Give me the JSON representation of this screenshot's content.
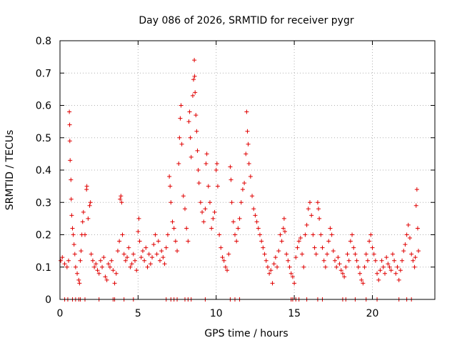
{
  "chart_data": {
    "type": "scatter",
    "title": "Day 086 of 2026, SRMTID for receiver pygr",
    "xlabel": "GPS time / hours",
    "ylabel": "SRMTID / TECUs",
    "xlim": [
      0,
      24
    ],
    "ylim": [
      0,
      0.8
    ],
    "x_ticks": [
      0,
      5,
      10,
      15,
      20
    ],
    "x_tick_labels": [
      "0",
      "5",
      "10",
      "15",
      "20"
    ],
    "y_ticks": [
      0,
      0.1,
      0.2,
      0.3,
      0.4,
      0.5,
      0.6,
      0.7,
      0.8
    ],
    "y_tick_labels": [
      "0",
      "0.1",
      "0.2",
      "0.3",
      "0.4",
      "0.5",
      "0.6",
      "0.7",
      "0.8"
    ],
    "grid": true,
    "marker": "plus",
    "color": "#e00000",
    "series": [
      {
        "name": "SRMTID",
        "points": [
          [
            0.05,
            0.12
          ],
          [
            0.15,
            0.13
          ],
          [
            0.3,
            0.11
          ],
          [
            0.45,
            0.1
          ],
          [
            0.55,
            0.12
          ],
          [
            0.6,
            0.58
          ],
          [
            0.62,
            0.54
          ],
          [
            0.63,
            0.49
          ],
          [
            0.65,
            0.43
          ],
          [
            0.7,
            0.37
          ],
          [
            0.72,
            0.31
          ],
          [
            0.75,
            0.26
          ],
          [
            0.8,
            0.22
          ],
          [
            0.85,
            0.2
          ],
          [
            0.9,
            0.17
          ],
          [
            0.95,
            0.14
          ],
          [
            1.0,
            0.1
          ],
          [
            1.1,
            0.08
          ],
          [
            1.2,
            0.06
          ],
          [
            1.25,
            0.05
          ],
          [
            1.3,
            0.12
          ],
          [
            1.35,
            0.15
          ],
          [
            1.4,
            0.2
          ],
          [
            1.45,
            0.24
          ],
          [
            1.5,
            0.27
          ],
          [
            1.6,
            0.2
          ],
          [
            1.7,
            0.34
          ],
          [
            1.72,
            0.35
          ],
          [
            1.8,
            0.25
          ],
          [
            1.9,
            0.29
          ],
          [
            1.95,
            0.3
          ],
          [
            2.0,
            0.14
          ],
          [
            2.1,
            0.12
          ],
          [
            2.2,
            0.1
          ],
          [
            2.3,
            0.11
          ],
          [
            2.4,
            0.09
          ],
          [
            2.5,
            0.08
          ],
          [
            2.6,
            0.12
          ],
          [
            2.7,
            0.1
          ],
          [
            2.8,
            0.13
          ],
          [
            2.9,
            0.07
          ],
          [
            3.0,
            0.06
          ],
          [
            3.1,
            0.11
          ],
          [
            3.2,
            0.1
          ],
          [
            3.3,
            0.12
          ],
          [
            3.4,
            0.09
          ],
          [
            3.5,
            0.05
          ],
          [
            3.6,
            0.08
          ],
          [
            3.7,
            0.15
          ],
          [
            3.8,
            0.18
          ],
          [
            3.85,
            0.31
          ],
          [
            3.9,
            0.32
          ],
          [
            3.95,
            0.3
          ],
          [
            4.0,
            0.2
          ],
          [
            4.1,
            0.14
          ],
          [
            4.2,
            0.12
          ],
          [
            4.3,
            0.13
          ],
          [
            4.4,
            0.16
          ],
          [
            4.5,
            0.1
          ],
          [
            4.6,
            0.11
          ],
          [
            4.7,
            0.14
          ],
          [
            4.8,
            0.12
          ],
          [
            4.9,
            0.09
          ],
          [
            5.0,
            0.21
          ],
          [
            5.05,
            0.25
          ],
          [
            5.1,
            0.18
          ],
          [
            5.2,
            0.13
          ],
          [
            5.3,
            0.15
          ],
          [
            5.4,
            0.12
          ],
          [
            5.5,
            0.16
          ],
          [
            5.6,
            0.1
          ],
          [
            5.7,
            0.14
          ],
          [
            5.8,
            0.11
          ],
          [
            5.9,
            0.13
          ],
          [
            6.0,
            0.17
          ],
          [
            6.1,
            0.2
          ],
          [
            6.2,
            0.14
          ],
          [
            6.3,
            0.18
          ],
          [
            6.4,
            0.12
          ],
          [
            6.5,
            0.15
          ],
          [
            6.6,
            0.13
          ],
          [
            6.7,
            0.11
          ],
          [
            6.8,
            0.16
          ],
          [
            6.9,
            0.2
          ],
          [
            7.0,
            0.38
          ],
          [
            7.05,
            0.35
          ],
          [
            7.1,
            0.3
          ],
          [
            7.2,
            0.24
          ],
          [
            7.3,
            0.22
          ],
          [
            7.4,
            0.18
          ],
          [
            7.5,
            0.15
          ],
          [
            7.6,
            0.42
          ],
          [
            7.65,
            0.5
          ],
          [
            7.7,
            0.56
          ],
          [
            7.75,
            0.6
          ],
          [
            7.8,
            0.48
          ],
          [
            7.9,
            0.32
          ],
          [
            8.0,
            0.28
          ],
          [
            8.1,
            0.22
          ],
          [
            8.2,
            0.18
          ],
          [
            8.25,
            0.55
          ],
          [
            8.3,
            0.58
          ],
          [
            8.35,
            0.5
          ],
          [
            8.4,
            0.44
          ],
          [
            8.5,
            0.63
          ],
          [
            8.55,
            0.68
          ],
          [
            8.6,
            0.74
          ],
          [
            8.62,
            0.69
          ],
          [
            8.65,
            0.64
          ],
          [
            8.7,
            0.57
          ],
          [
            8.75,
            0.52
          ],
          [
            8.8,
            0.46
          ],
          [
            8.85,
            0.4
          ],
          [
            8.9,
            0.36
          ],
          [
            9.0,
            0.3
          ],
          [
            9.1,
            0.27
          ],
          [
            9.2,
            0.24
          ],
          [
            9.3,
            0.28
          ],
          [
            9.35,
            0.42
          ],
          [
            9.4,
            0.45
          ],
          [
            9.5,
            0.35
          ],
          [
            9.6,
            0.3
          ],
          [
            9.7,
            0.22
          ],
          [
            9.8,
            0.25
          ],
          [
            9.9,
            0.27
          ],
          [
            10.0,
            0.4
          ],
          [
            10.05,
            0.42
          ],
          [
            10.1,
            0.35
          ],
          [
            10.2,
            0.2
          ],
          [
            10.3,
            0.16
          ],
          [
            10.4,
            0.13
          ],
          [
            10.5,
            0.12
          ],
          [
            10.6,
            0.1
          ],
          [
            10.7,
            0.09
          ],
          [
            10.8,
            0.14
          ],
          [
            10.9,
            0.41
          ],
          [
            10.95,
            0.37
          ],
          [
            11.0,
            0.3
          ],
          [
            11.1,
            0.24
          ],
          [
            11.2,
            0.2
          ],
          [
            11.3,
            0.18
          ],
          [
            11.4,
            0.22
          ],
          [
            11.5,
            0.25
          ],
          [
            11.6,
            0.3
          ],
          [
            11.7,
            0.34
          ],
          [
            11.8,
            0.36
          ],
          [
            11.9,
            0.45
          ],
          [
            11.95,
            0.58
          ],
          [
            12.0,
            0.52
          ],
          [
            12.05,
            0.48
          ],
          [
            12.1,
            0.42
          ],
          [
            12.2,
            0.38
          ],
          [
            12.3,
            0.32
          ],
          [
            12.4,
            0.28
          ],
          [
            12.5,
            0.26
          ],
          [
            12.6,
            0.24
          ],
          [
            12.7,
            0.22
          ],
          [
            12.8,
            0.2
          ],
          [
            12.9,
            0.18
          ],
          [
            13.0,
            0.16
          ],
          [
            13.1,
            0.14
          ],
          [
            13.2,
            0.12
          ],
          [
            13.3,
            0.1
          ],
          [
            13.4,
            0.08
          ],
          [
            13.5,
            0.09
          ],
          [
            13.6,
            0.05
          ],
          [
            13.7,
            0.11
          ],
          [
            13.8,
            0.13
          ],
          [
            13.9,
            0.1
          ],
          [
            14.0,
            0.15
          ],
          [
            14.1,
            0.2
          ],
          [
            14.2,
            0.18
          ],
          [
            14.3,
            0.22
          ],
          [
            14.35,
            0.25
          ],
          [
            14.4,
            0.21
          ],
          [
            14.5,
            0.14
          ],
          [
            14.6,
            0.12
          ],
          [
            14.7,
            0.1
          ],
          [
            14.8,
            0.08
          ],
          [
            14.9,
            0.07
          ],
          [
            15.0,
            0.05
          ],
          [
            15.1,
            0.13
          ],
          [
            15.2,
            0.16
          ],
          [
            15.3,
            0.18
          ],
          [
            15.4,
            0.19
          ],
          [
            15.5,
            0.14
          ],
          [
            15.6,
            0.1
          ],
          [
            15.7,
            0.2
          ],
          [
            15.8,
            0.23
          ],
          [
            15.9,
            0.28
          ],
          [
            16.0,
            0.3
          ],
          [
            16.1,
            0.26
          ],
          [
            16.2,
            0.2
          ],
          [
            16.3,
            0.16
          ],
          [
            16.4,
            0.14
          ],
          [
            16.5,
            0.3
          ],
          [
            16.55,
            0.28
          ],
          [
            16.6,
            0.25
          ],
          [
            16.7,
            0.2
          ],
          [
            16.8,
            0.16
          ],
          [
            16.9,
            0.12
          ],
          [
            17.0,
            0.1
          ],
          [
            17.1,
            0.14
          ],
          [
            17.2,
            0.18
          ],
          [
            17.3,
            0.22
          ],
          [
            17.4,
            0.2
          ],
          [
            17.5,
            0.15
          ],
          [
            17.6,
            0.12
          ],
          [
            17.7,
            0.1
          ],
          [
            17.8,
            0.13
          ],
          [
            17.9,
            0.11
          ],
          [
            18.0,
            0.09
          ],
          [
            18.1,
            0.08
          ],
          [
            18.2,
            0.07
          ],
          [
            18.3,
            0.1
          ],
          [
            18.4,
            0.14
          ],
          [
            18.5,
            0.12
          ],
          [
            18.6,
            0.18
          ],
          [
            18.7,
            0.2
          ],
          [
            18.8,
            0.16
          ],
          [
            18.9,
            0.14
          ],
          [
            19.0,
            0.12
          ],
          [
            19.1,
            0.1
          ],
          [
            19.2,
            0.08
          ],
          [
            19.3,
            0.06
          ],
          [
            19.4,
            0.05
          ],
          [
            19.5,
            0.1
          ],
          [
            19.6,
            0.14
          ],
          [
            19.7,
            0.12
          ],
          [
            19.8,
            0.18
          ],
          [
            19.9,
            0.2
          ],
          [
            20.0,
            0.16
          ],
          [
            20.1,
            0.14
          ],
          [
            20.2,
            0.12
          ],
          [
            20.3,
            0.08
          ],
          [
            20.4,
            0.06
          ],
          [
            20.5,
            0.09
          ],
          [
            20.6,
            0.12
          ],
          [
            20.7,
            0.1
          ],
          [
            20.8,
            0.08
          ],
          [
            20.9,
            0.13
          ],
          [
            21.0,
            0.11
          ],
          [
            21.1,
            0.1
          ],
          [
            21.2,
            0.09
          ],
          [
            21.3,
            0.14
          ],
          [
            21.4,
            0.12
          ],
          [
            21.5,
            0.08
          ],
          [
            21.6,
            0.1
          ],
          [
            21.7,
            0.06
          ],
          [
            21.8,
            0.09
          ],
          [
            21.9,
            0.12
          ],
          [
            22.0,
            0.15
          ],
          [
            22.1,
            0.17
          ],
          [
            22.2,
            0.2
          ],
          [
            22.3,
            0.23
          ],
          [
            22.4,
            0.19
          ],
          [
            22.5,
            0.14
          ],
          [
            22.6,
            0.12
          ],
          [
            22.7,
            0.1
          ],
          [
            22.75,
            0.13
          ],
          [
            22.8,
            0.29
          ],
          [
            22.85,
            0.34
          ],
          [
            22.9,
            0.22
          ],
          [
            22.95,
            0.15
          ]
        ],
        "zero_points_x": [
          0.3,
          0.5,
          0.8,
          1.0,
          1.2,
          1.3,
          1.6,
          2.5,
          3.4,
          3.5,
          4.1,
          4.7,
          6.8,
          7.1,
          7.3,
          7.5,
          8.0,
          8.2,
          8.4,
          9.3,
          10.9,
          11.2,
          11.5,
          14.8,
          14.9,
          15.1,
          15.3,
          15.8,
          16.5,
          16.8,
          18.1,
          18.3,
          18.9,
          19.6,
          20.3,
          21.7,
          22.2,
          22.5
        ]
      }
    ]
  }
}
